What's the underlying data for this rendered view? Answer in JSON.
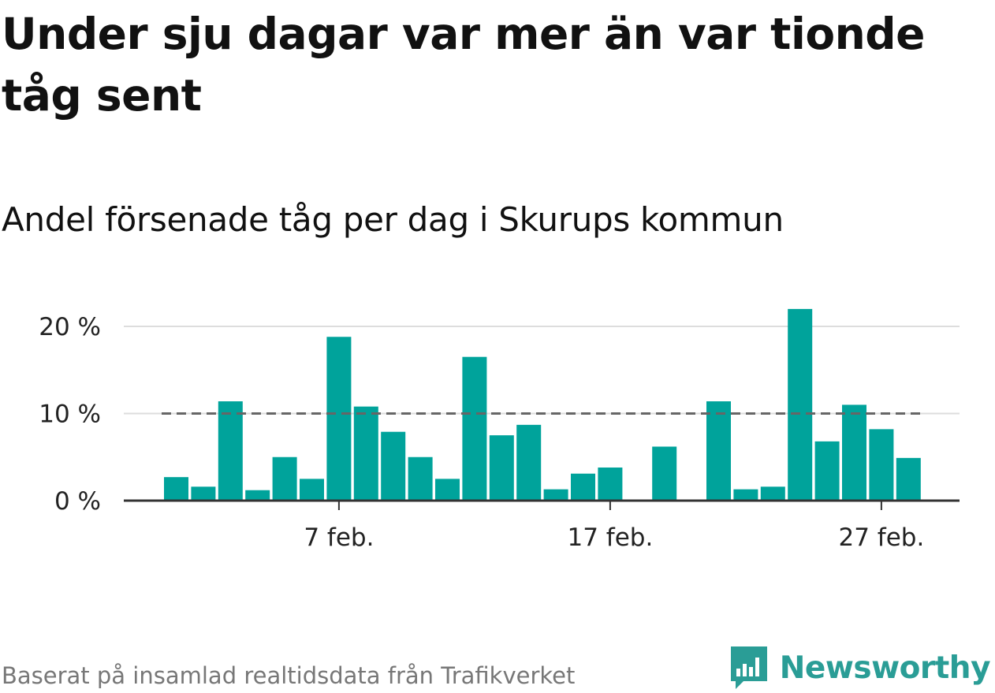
{
  "title": "Under sju dagar var mer än var tionde tåg sent",
  "subtitle": "Andel försenade tåg per dag i Skurups kommun",
  "source": "Baserat på insamlad realtidsdata från Trafikverket",
  "brand": {
    "name": "Newsworthy",
    "logo_icon": "newsworthy-logo-icon",
    "color": "#2a9d96"
  },
  "colors": {
    "bar": "#00a39b",
    "reference_line": "#666666",
    "grid": "#dddddd",
    "axis": "#333333"
  },
  "chart_data": {
    "type": "bar",
    "x": [
      "2025-02-01",
      "2025-02-02",
      "2025-02-03",
      "2025-02-04",
      "2025-02-05",
      "2025-02-06",
      "2025-02-07",
      "2025-02-08",
      "2025-02-09",
      "2025-02-10",
      "2025-02-11",
      "2025-02-12",
      "2025-02-13",
      "2025-02-14",
      "2025-02-15",
      "2025-02-16",
      "2025-02-17",
      "2025-02-18",
      "2025-02-19",
      "2025-02-20",
      "2025-02-21",
      "2025-02-22",
      "2025-02-23",
      "2025-02-24",
      "2025-02-25",
      "2025-02-26",
      "2025-02-27",
      "2025-02-28"
    ],
    "values": [
      2.7,
      1.6,
      11.4,
      1.2,
      5.0,
      2.5,
      18.8,
      10.8,
      7.9,
      5.0,
      2.5,
      16.5,
      7.5,
      8.7,
      1.3,
      3.1,
      3.8,
      0,
      6.2,
      0,
      11.4,
      1.3,
      1.6,
      22.0,
      6.8,
      11.0,
      8.2,
      4.9
    ],
    "reference_line": 10,
    "ylim": [
      0,
      22
    ],
    "yticks": [
      0,
      10,
      20
    ],
    "ytick_labels": [
      "0 %",
      "10 %",
      "20 %"
    ],
    "xtick_positions": [
      "2025-02-07",
      "2025-02-17",
      "2025-02-27"
    ],
    "xtick_labels": [
      "7 feb.",
      "17 feb.",
      "27 feb."
    ],
    "grid": true
  }
}
